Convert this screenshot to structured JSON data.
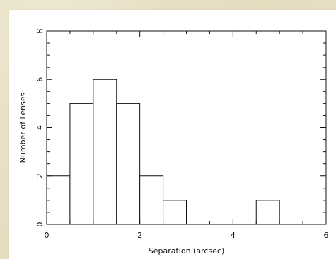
{
  "chart_data": {
    "type": "bar",
    "title": "",
    "xlabel": "Separation (arcsec)",
    "ylabel": "Number of Lenses",
    "xlim": [
      0,
      6
    ],
    "ylim": [
      0,
      8
    ],
    "x_ticks": [
      0,
      2,
      4,
      6
    ],
    "y_ticks": [
      0,
      2,
      4,
      6,
      8
    ],
    "bins": [
      {
        "start": 0.0,
        "end": 0.5,
        "value": 2
      },
      {
        "start": 0.5,
        "end": 1.0,
        "value": 5
      },
      {
        "start": 1.0,
        "end": 1.5,
        "value": 6
      },
      {
        "start": 1.5,
        "end": 2.0,
        "value": 5
      },
      {
        "start": 2.0,
        "end": 2.5,
        "value": 2
      },
      {
        "start": 2.5,
        "end": 3.0,
        "value": 1
      },
      {
        "start": 3.0,
        "end": 3.5,
        "value": 0
      },
      {
        "start": 3.5,
        "end": 4.0,
        "value": 0
      },
      {
        "start": 4.0,
        "end": 4.5,
        "value": 0
      },
      {
        "start": 4.5,
        "end": 5.0,
        "value": 1
      },
      {
        "start": 5.0,
        "end": 5.5,
        "value": 0
      },
      {
        "start": 5.5,
        "end": 6.0,
        "value": 0
      }
    ],
    "grid": false,
    "legend": "none"
  }
}
